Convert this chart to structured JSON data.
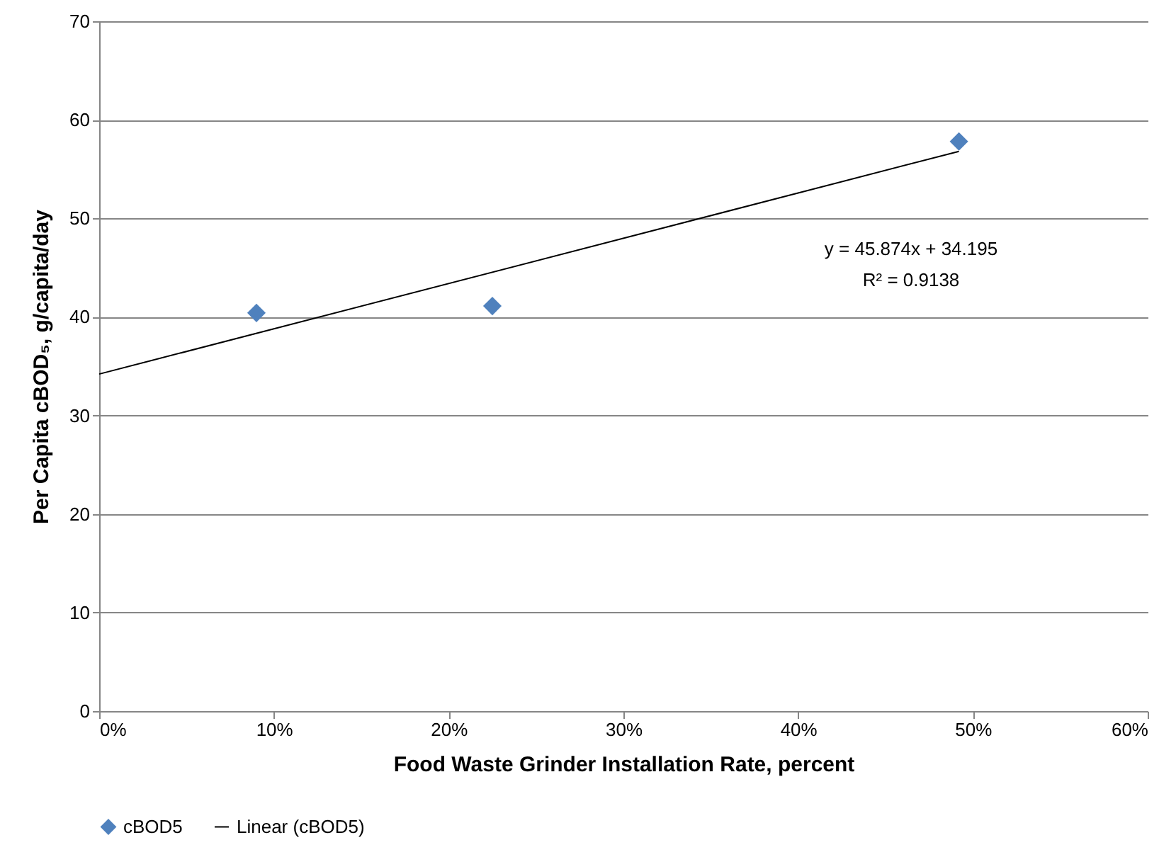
{
  "chart_data": {
    "type": "scatter",
    "xlabel": "Food Waste Grinder Installation  Rate, percent",
    "ylabel": "Per Capita cBOD₅, g/capita/day",
    "series": [
      {
        "name": "cBOD5",
        "color": "#4f81bd",
        "x": [
          0.09,
          0.225,
          0.492
        ],
        "values": [
          40.4,
          41.1,
          57.8
        ]
      },
      {
        "name": "Linear (cBOD5)",
        "type": "line",
        "marker": "none",
        "color": "#000000",
        "x": [
          0,
          0.492
        ],
        "values": [
          34.2,
          56.8
        ]
      }
    ],
    "xlim": [
      0,
      0.6
    ],
    "xticks": [
      {
        "value": 0,
        "label": "0%"
      },
      {
        "value": 0.1,
        "label": "10%"
      },
      {
        "value": 0.2,
        "label": "20%"
      },
      {
        "value": 0.3,
        "label": "30%"
      },
      {
        "value": 0.4,
        "label": "40%"
      },
      {
        "value": 0.5,
        "label": "50%"
      },
      {
        "value": 0.6,
        "label": "60%"
      }
    ],
    "ylim": [
      0,
      70
    ],
    "yticks": [
      0,
      10,
      20,
      30,
      40,
      50,
      60,
      70
    ],
    "annotations": [
      "y = 45.874x + 34.195",
      "R² = 0.9138"
    ],
    "grid": "y",
    "legend": "bottom",
    "marker": "diamond",
    "line_style": "solid"
  }
}
